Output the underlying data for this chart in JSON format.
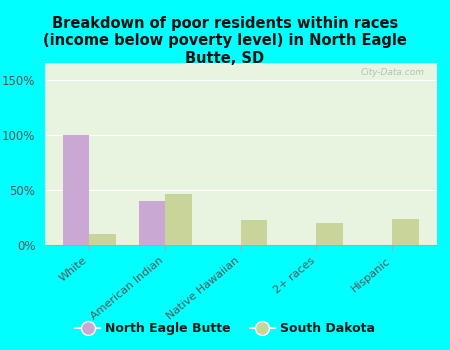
{
  "title": "Breakdown of poor residents within races\n(income below poverty level) in North Eagle\nButte, SD",
  "categories": [
    "White",
    "American Indian",
    "Native Hawaiian",
    "2+ races",
    "Hispanic"
  ],
  "neb_values": [
    100,
    40,
    0,
    0,
    0
  ],
  "sd_values": [
    10,
    46,
    23,
    20,
    24
  ],
  "neb_color": "#c9a8d4",
  "sd_color": "#c8d49a",
  "background_color": "#00ffff",
  "plot_bg": "#e8f4e0",
  "yticks": [
    0,
    50,
    100,
    150
  ],
  "ylim": [
    0,
    165
  ],
  "bar_width": 0.35,
  "legend_labels": [
    "North Eagle Butte",
    "South Dakota"
  ],
  "watermark": "City-Data.com"
}
